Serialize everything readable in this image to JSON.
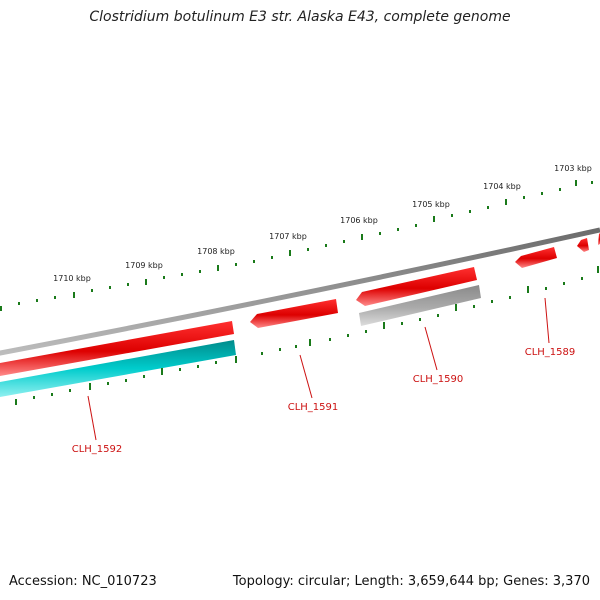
{
  "title": "Clostridium botulinum E3 str. Alaska E43, complete genome",
  "footer": {
    "accession": "Accession: NC_010723",
    "topology": "Topology: circular; Length: 3,659,644 bp; Genes: 3,370"
  },
  "ruler": {
    "labels": [
      "1710 kbp",
      "1709 kbp",
      "1708 kbp",
      "1707 kbp",
      "1706 kbp",
      "1705 kbp",
      "1704 kbp",
      "1703 kbp"
    ]
  },
  "genes": [
    {
      "name": "CLH_1592"
    },
    {
      "name": "CLH_1591"
    },
    {
      "name": "CLH_1590"
    },
    {
      "name": "CLH_1589"
    }
  ],
  "colors": {
    "forward_cds": "#dd0000",
    "reverse_cds": "#00aaaa",
    "other_feature": "#999999",
    "backbone": "#777777",
    "tick": "#1a7a1a",
    "gene_label": "#cc1111"
  }
}
